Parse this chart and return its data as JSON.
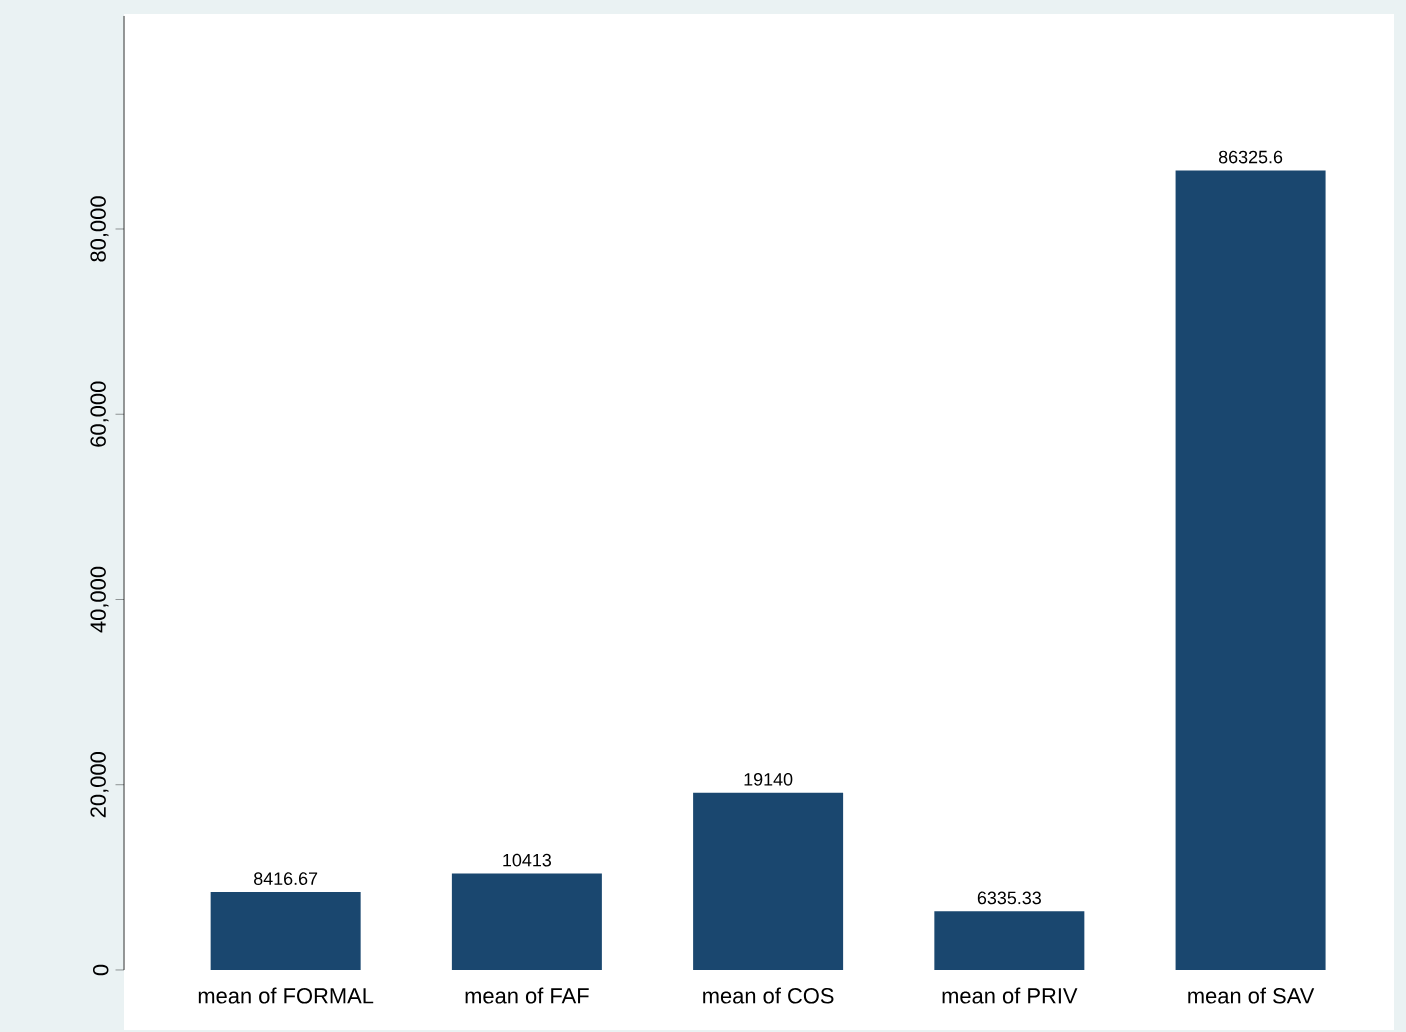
{
  "chart_data": {
    "type": "bar",
    "categories": [
      "mean of FORMAL",
      "mean of FAF",
      "mean of COS",
      "mean of PRIV",
      "mean of SAV"
    ],
    "values": [
      8416.67,
      10413,
      19140,
      6335.33,
      86325.6
    ],
    "color": "#1a476f",
    "ylim": [
      0,
      103000
    ],
    "yticks": [
      {
        "value": 0,
        "label": "0"
      },
      {
        "value": 20000,
        "label": "20,000"
      },
      {
        "value": 40000,
        "label": "40,000"
      },
      {
        "value": 60000,
        "label": "60,000"
      },
      {
        "value": 80000,
        "label": "80,000"
      }
    ],
    "data_labels": true,
    "grid": false
  }
}
